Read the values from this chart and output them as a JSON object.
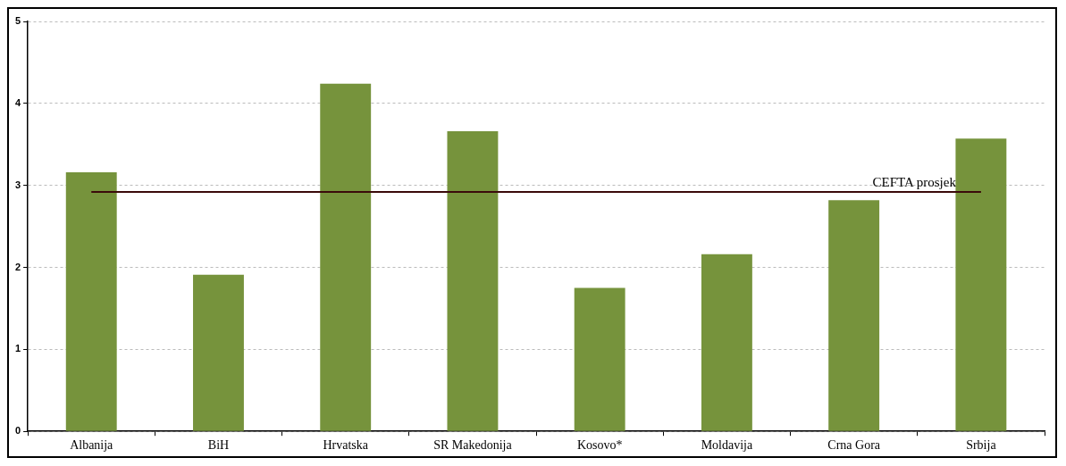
{
  "chart_data": {
    "type": "bar",
    "categories": [
      "Albanija",
      "BiH",
      "Hrvatska",
      "SR Makedonija",
      "Kosovo*",
      "Moldavija",
      "Crna Gora",
      "Srbija"
    ],
    "values": [
      3.16,
      1.91,
      4.24,
      3.66,
      1.75,
      2.16,
      2.82,
      3.57
    ],
    "color": "#76933c",
    "ylim": [
      0,
      5
    ],
    "yticks": [
      0,
      1,
      2,
      3,
      4,
      5
    ],
    "grid": "y",
    "ref_lines": [
      {
        "axis": "y",
        "value": 2.92,
        "label": "CEFTA prosjek",
        "color": "#3a0a0a"
      }
    ]
  }
}
